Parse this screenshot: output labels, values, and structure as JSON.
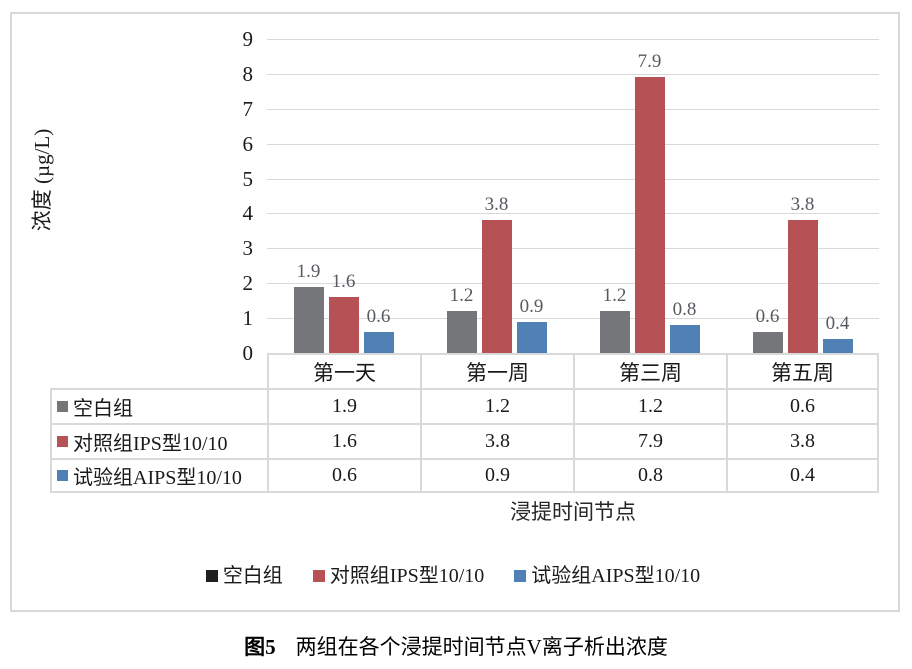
{
  "chart_data": {
    "type": "bar",
    "categories": [
      "第一天",
      "第一周",
      "第三周",
      "第五周"
    ],
    "series": [
      {
        "name": "空白组",
        "color": "#75767A",
        "values": [
          1.9,
          1.2,
          1.2,
          0.6
        ]
      },
      {
        "name": "对照组IPS型10/10",
        "color": "#B65155",
        "values": [
          1.6,
          3.8,
          7.9,
          3.8
        ]
      },
      {
        "name": "试验组AIPS型10/10",
        "color": "#4F81B4",
        "values": [
          0.6,
          0.9,
          0.8,
          0.4
        ]
      }
    ],
    "ylabel": "浓度 (µg/L)",
    "xlabel": "浸提时间节点",
    "ylim": [
      0,
      9
    ],
    "ytick_step": 1,
    "grid": true,
    "grid_color": "#D9D9D9",
    "bar_label_color": "#565A5F",
    "legend_position": "bottom",
    "show_data_table": true
  },
  "legend": {
    "items": [
      {
        "label": "空白组",
        "marker_color": "#1F1F1F"
      },
      {
        "label": "对照组IPS型10/10",
        "marker_color": "#B65155"
      },
      {
        "label": "试验组AIPS型10/10",
        "marker_color": "#4F81B4"
      }
    ]
  },
  "caption": {
    "label": "图5",
    "text": "两组在各个浸提时间节点V离子析出浓度"
  }
}
